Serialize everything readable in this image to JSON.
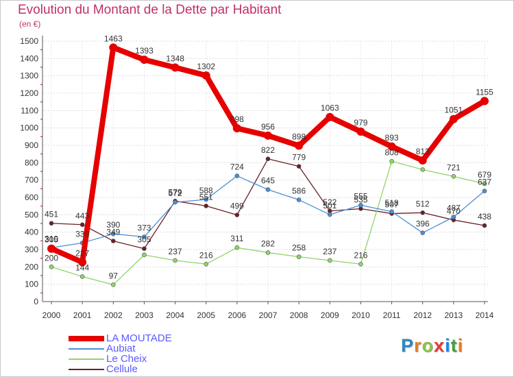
{
  "title": "Evolution du Montant de la Dette par Habitant",
  "unit": "(en €)",
  "brand": {
    "letters": [
      "P",
      "r",
      "o",
      "x",
      "i",
      "t",
      "i"
    ],
    "colors": [
      "#2e86c1",
      "#e67e22",
      "#8bc34a",
      "#e53935",
      "#1e88e5",
      "#43a047",
      "#e67e22"
    ]
  },
  "chart_data": {
    "type": "line",
    "title": "Evolution du Montant de la Dette par Habitant",
    "ylabel": "(en €)",
    "x": [
      "2000",
      "2001",
      "2002",
      "2003",
      "2004",
      "2005",
      "2006",
      "2007",
      "2008",
      "2009",
      "2010",
      "2011",
      "2012",
      "2013",
      "2014"
    ],
    "ylim": [
      0,
      1500
    ],
    "yticks": [
      0,
      100,
      200,
      300,
      400,
      500,
      600,
      700,
      800,
      900,
      1000,
      1100,
      1200,
      1300,
      1400,
      1500
    ],
    "grid": true,
    "legend": "bottom-left",
    "series": [
      {
        "name": "LA MOUTADE",
        "color": "#e60000",
        "values": [
          305,
          227,
          1463,
          1393,
          1348,
          1302,
          998,
          956,
          898,
          1063,
          979,
          893,
          813,
          1051,
          1155
        ],
        "labels": [
          "305",
          "227",
          "1463",
          "1393",
          "1348",
          "1302",
          "998",
          "956",
          "898",
          "1063",
          "979",
          "893",
          "813",
          "1051",
          "1155"
        ]
      },
      {
        "name": "Aubiat",
        "color": "#4a8fd4",
        "values": [
          310,
          338,
          390,
          373,
          572,
          588,
          724,
          645,
          586,
          501,
          555,
          518,
          396,
          487,
          637
        ],
        "labels": [
          "310",
          "338",
          "390",
          "373",
          "572",
          "588",
          "724",
          "645",
          "586",
          "501",
          "555",
          "518",
          "396",
          "487",
          "637"
        ]
      },
      {
        "name": "Le Cheix",
        "color": "#8fd468",
        "values": [
          200,
          144,
          97,
          269,
          237,
          216,
          311,
          282,
          258,
          237,
          216,
          808,
          760,
          721,
          679
        ],
        "labels": [
          "200",
          "144",
          "97",
          "",
          "237",
          "216",
          "311",
          "282",
          "258",
          "237",
          "216",
          "808",
          "",
          "721",
          "679"
        ]
      },
      {
        "name": "Cellule",
        "color": "#6b1f24",
        "values": [
          451,
          443,
          349,
          305,
          579,
          551,
          499,
          822,
          779,
          522,
          535,
          507,
          512,
          470,
          438
        ],
        "labels": [
          "451",
          "443",
          "349",
          "305",
          "579",
          "551",
          "499",
          "822",
          "779",
          "522",
          "535",
          "507",
          "512",
          "470",
          "438"
        ]
      }
    ]
  }
}
